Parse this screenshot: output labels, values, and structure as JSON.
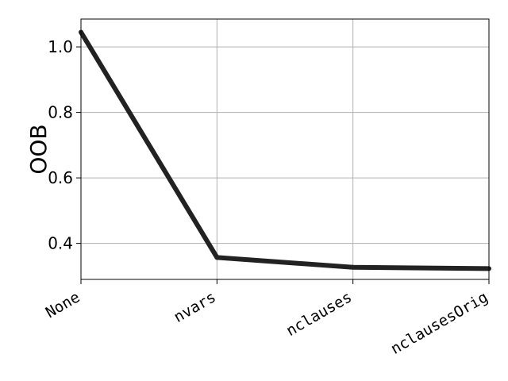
{
  "chart_data": {
    "type": "line",
    "categories": [
      "None",
      "nvars",
      "nclauses",
      "nclausesOrig"
    ],
    "series": [
      {
        "values": [
          1.045,
          0.357,
          0.327,
          0.323
        ],
        "color": "#222222"
      }
    ],
    "title": "",
    "xlabel": "",
    "ylabel": "OOB",
    "ylim": [
      0.29,
      1.085
    ],
    "yticks": [
      0.4,
      0.6,
      0.8,
      1.0
    ],
    "ytick_labels": [
      "0.4",
      "0.6",
      "0.8",
      "1.0"
    ],
    "grid": true,
    "legend": "none"
  }
}
